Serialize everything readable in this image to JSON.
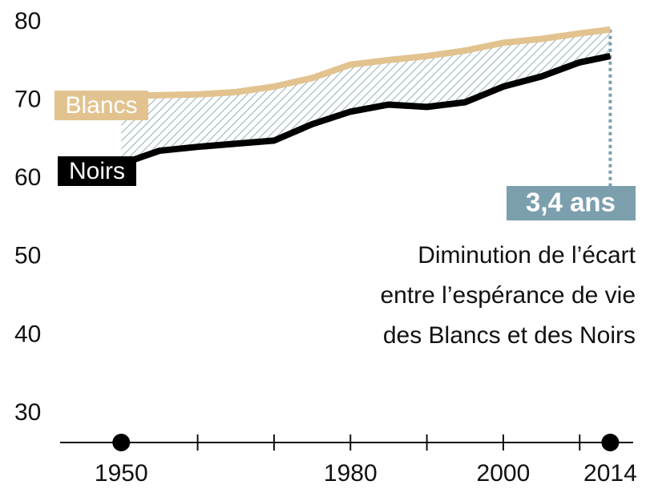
{
  "chart_data": {
    "type": "line",
    "x": [
      1950,
      1955,
      1960,
      1965,
      1970,
      1975,
      1980,
      1985,
      1990,
      1995,
      2000,
      2005,
      2010,
      2014
    ],
    "series": [
      {
        "name": "Blancs",
        "color": "#e2c38f",
        "values": [
          70.6,
          70.7,
          70.8,
          71.1,
          71.8,
          72.9,
          74.6,
          75.2,
          75.7,
          76.4,
          77.4,
          77.9,
          78.6,
          79.1
        ]
      },
      {
        "name": "Noirs",
        "color": "#000000",
        "values": [
          61.9,
          63.6,
          64.1,
          64.5,
          64.9,
          67.0,
          68.6,
          69.5,
          69.2,
          69.8,
          71.8,
          73.1,
          74.9,
          75.7
        ]
      }
    ],
    "xlim": [
      1942,
      2017
    ],
    "xticks": [
      1960,
      1970,
      1980,
      1990,
      2000,
      2010
    ],
    "xlabels": [
      1950,
      1980,
      2000,
      2014
    ],
    "ylim": [
      26,
      80
    ],
    "yticks": [
      30,
      40,
      50,
      60,
      70,
      80
    ],
    "gap_label": "3,4 ans",
    "gap_color": "#7c9fae",
    "annotation": [
      "Diminution de l’écart",
      "entre l’espérance de vie",
      "des Blancs et des Noirs"
    ]
  }
}
